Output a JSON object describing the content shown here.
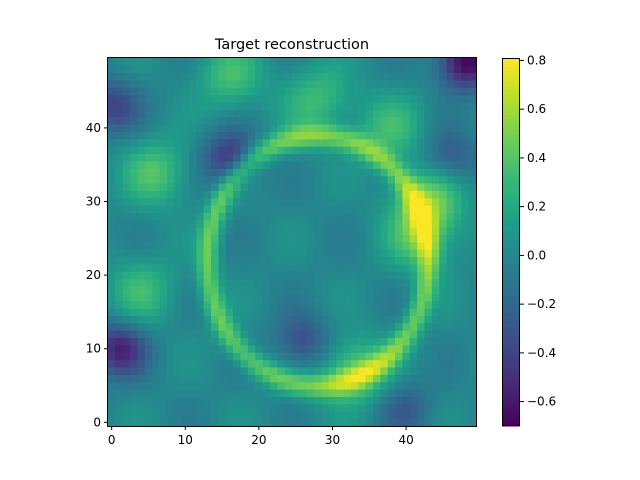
{
  "chart_data": {
    "type": "heatmap",
    "title": "Target reconstruction",
    "xlabel": "",
    "ylabel": "",
    "grid_size": [
      50,
      50
    ],
    "origin": "lower",
    "xlim": [
      -0.5,
      49.5
    ],
    "ylim": [
      -0.5,
      49.5
    ],
    "x_ticks": [
      0,
      10,
      20,
      30,
      40
    ],
    "y_ticks": [
      0,
      10,
      20,
      30,
      40
    ],
    "colormap": "viridis",
    "value_range": [
      -0.7,
      0.81
    ],
    "colorbar_ticks": [
      0.8,
      0.6,
      0.4,
      0.2,
      0.0,
      -0.2,
      -0.4,
      -0.6
    ],
    "colorbar_tick_labels": [
      "0.8",
      "0.6",
      "0.4",
      "0.2",
      "0.0",
      "−0.2",
      "−0.4",
      "−0.6"
    ],
    "features": {
      "background_level": 0.0,
      "ring": {
        "center": [
          28,
          22
        ],
        "radius_x": 15,
        "radius_y": 17,
        "level": 0.45
      },
      "hotspots": [
        {
          "x": 43,
          "y": 30,
          "value": 0.78
        },
        {
          "x": 42,
          "y": 25,
          "value": 0.6
        },
        {
          "x": 33,
          "y": 7,
          "value": 0.72
        },
        {
          "x": 28,
          "y": 44,
          "value": 0.55
        },
        {
          "x": 16,
          "y": 47,
          "value": 0.55
        },
        {
          "x": 6,
          "y": 34,
          "value": 0.62
        },
        {
          "x": 4,
          "y": 18,
          "value": 0.5
        },
        {
          "x": 38,
          "y": 40,
          "value": 0.5
        }
      ],
      "coldspots": [
        {
          "x": 48,
          "y": 49,
          "value": -0.7
        },
        {
          "x": 1,
          "y": 10,
          "value": -0.55
        },
        {
          "x": 0,
          "y": 43,
          "value": -0.4
        },
        {
          "x": 16,
          "y": 36,
          "value": -0.45
        },
        {
          "x": 26,
          "y": 11,
          "value": -0.35
        },
        {
          "x": 46,
          "y": 36,
          "value": -0.3
        },
        {
          "x": 40,
          "y": 2,
          "value": -0.25
        }
      ]
    }
  }
}
